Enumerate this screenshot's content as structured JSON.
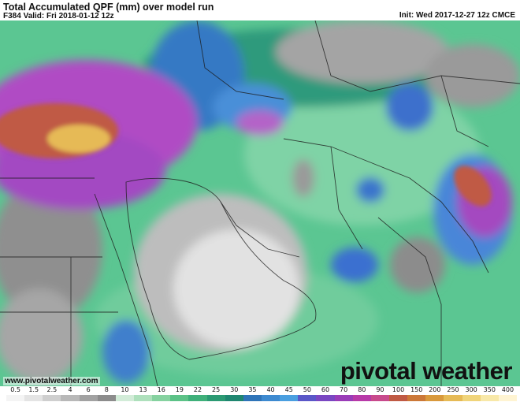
{
  "header": {
    "title": "Total Accumulated QPF (mm) over model run",
    "valid": "F384 Valid: Fri 2018-01-12 12z",
    "init": "Init: Wed 2017-12-27 12z CMCE"
  },
  "footer": {
    "website": "www.pivotalweather.com",
    "brand": "pivotal weather"
  },
  "legend": {
    "labels": [
      "0.5",
      "1.5",
      "2.5",
      "4",
      "6",
      "8",
      "10",
      "13",
      "16",
      "19",
      "22",
      "25",
      "30",
      "35",
      "40",
      "45",
      "50",
      "60",
      "70",
      "80",
      "90",
      "100",
      "150",
      "200",
      "250",
      "300",
      "350",
      "400"
    ],
    "colors": [
      "#f4f4f4",
      "#e4e4e4",
      "#cfcfcf",
      "#b8b8b8",
      "#a2a2a2",
      "#8c8c8c",
      "#d2ecd8",
      "#aee0bc",
      "#86d2a0",
      "#5cc287",
      "#3fb07a",
      "#2b9a73",
      "#1f8670",
      "#2f74b8",
      "#3d8ad0",
      "#4a9fe0",
      "#5a57c8",
      "#7a47c2",
      "#9a3cb8",
      "#b83aa8",
      "#c84a8c",
      "#c05a44",
      "#cc7838",
      "#d9993c",
      "#e6ba56",
      "#f0d47a",
      "#f8e8a8",
      "#fff4d2"
    ]
  }
}
